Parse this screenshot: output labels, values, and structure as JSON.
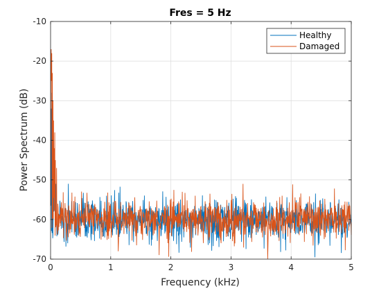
{
  "chart_data": {
    "type": "line",
    "title": "Fres = 5 Hz",
    "xlabel": "Frequency (kHz)",
    "ylabel": "Power Spectrum (dB)",
    "xlim": [
      0,
      5
    ],
    "ylim": [
      -70,
      -10
    ],
    "xticks": [
      0,
      1,
      2,
      3,
      4,
      5
    ],
    "yticks": [
      -70,
      -60,
      -50,
      -40,
      -30,
      -20,
      -10
    ],
    "grid": true,
    "legend_position": "top-right",
    "noise_floor_db": -60,
    "series": [
      {
        "name": "Healthy",
        "color": "#0072BD",
        "peaks": [
          {
            "x": 0.01,
            "y": -32
          },
          {
            "x": 0.02,
            "y": -28
          },
          {
            "x": 0.03,
            "y": -35
          },
          {
            "x": 0.05,
            "y": -40
          },
          {
            "x": 0.07,
            "y": -46
          },
          {
            "x": 0.09,
            "y": -51
          }
        ]
      },
      {
        "name": "Damaged",
        "color": "#D95319",
        "peaks": [
          {
            "x": 0.005,
            "y": -20
          },
          {
            "x": 0.01,
            "y": -17
          },
          {
            "x": 0.015,
            "y": -25
          },
          {
            "x": 0.02,
            "y": -18
          },
          {
            "x": 0.03,
            "y": -23
          },
          {
            "x": 0.04,
            "y": -30
          },
          {
            "x": 0.05,
            "y": -35
          },
          {
            "x": 0.06,
            "y": -42
          },
          {
            "x": 0.07,
            "y": -38
          },
          {
            "x": 0.08,
            "y": -45
          },
          {
            "x": 0.1,
            "y": -47
          },
          {
            "x": 0.12,
            "y": -56
          },
          {
            "x": 3.2,
            "y": -51
          },
          {
            "x": 2.65,
            "y": -53.5
          },
          {
            "x": 3.85,
            "y": -54
          }
        ]
      }
    ]
  }
}
